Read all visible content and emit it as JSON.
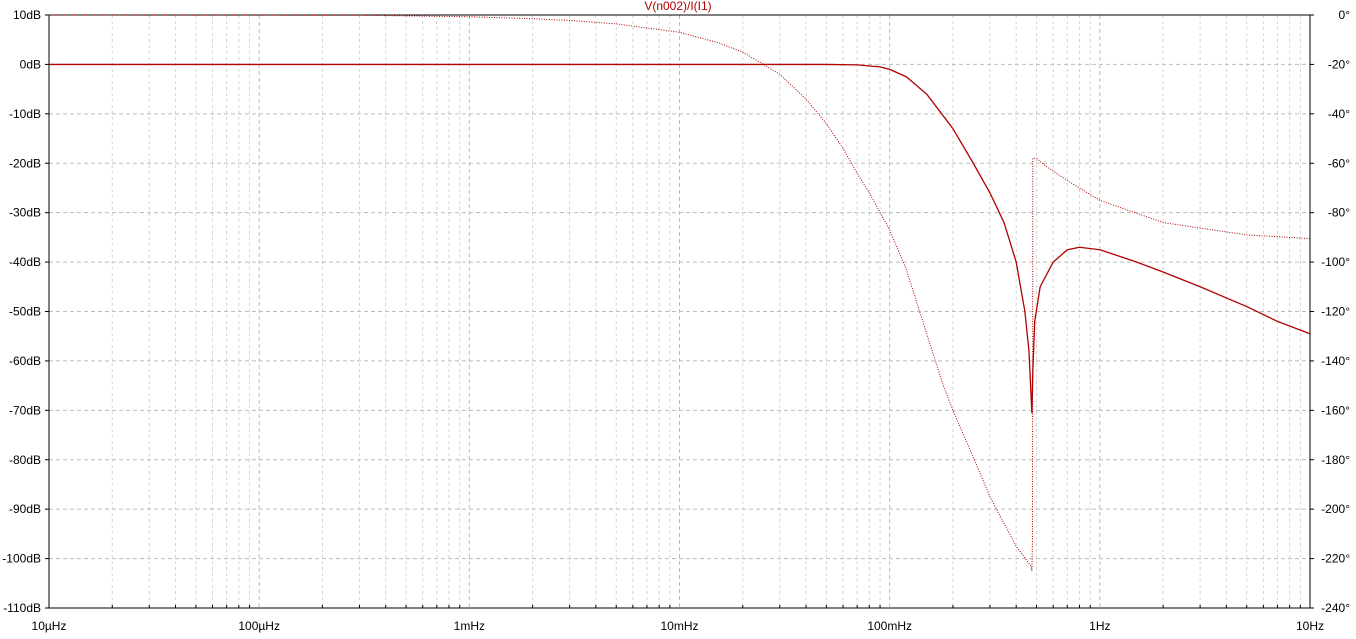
{
  "chart_data": {
    "type": "line",
    "title": "V(n002)/I(I1)",
    "xlabel": "",
    "ylabel": "",
    "x_scale": "log",
    "xlim": [
      1e-05,
      10
    ],
    "x_ticks": [
      {
        "value": 1e-05,
        "label": "10µHz"
      },
      {
        "value": 0.0001,
        "label": "100µHz"
      },
      {
        "value": 0.001,
        "label": "1mHz"
      },
      {
        "value": 0.01,
        "label": "10mHz"
      },
      {
        "value": 0.1,
        "label": "100mHz"
      },
      {
        "value": 1,
        "label": "1Hz"
      },
      {
        "value": 10,
        "label": "10Hz"
      }
    ],
    "ylim": [
      -110,
      10
    ],
    "y_ticks": [
      {
        "value": 10,
        "label": "10dB"
      },
      {
        "value": 0,
        "label": "0dB"
      },
      {
        "value": -10,
        "label": "-10dB"
      },
      {
        "value": -20,
        "label": "-20dB"
      },
      {
        "value": -30,
        "label": "-30dB"
      },
      {
        "value": -40,
        "label": "-40dB"
      },
      {
        "value": -50,
        "label": "-50dB"
      },
      {
        "value": -60,
        "label": "-60dB"
      },
      {
        "value": -70,
        "label": "-70dB"
      },
      {
        "value": -80,
        "label": "-80dB"
      },
      {
        "value": -90,
        "label": "-90dB"
      },
      {
        "value": -100,
        "label": "-100dB"
      },
      {
        "value": -110,
        "label": "-110dB"
      }
    ],
    "y2lim": [
      -240,
      0
    ],
    "y2_ticks": [
      {
        "value": 0,
        "label": "0°"
      },
      {
        "value": -20,
        "label": "-20°"
      },
      {
        "value": -40,
        "label": "-40°"
      },
      {
        "value": -60,
        "label": "-60°"
      },
      {
        "value": -80,
        "label": "-80°"
      },
      {
        "value": -100,
        "label": "-100°"
      },
      {
        "value": -120,
        "label": "-120°"
      },
      {
        "value": -140,
        "label": "-140°"
      },
      {
        "value": -160,
        "label": "-160°"
      },
      {
        "value": -180,
        "label": "-180°"
      },
      {
        "value": -200,
        "label": "-200°"
      },
      {
        "value": -220,
        "label": "-220°"
      },
      {
        "value": -240,
        "label": "-240°"
      }
    ],
    "grid": true,
    "series": [
      {
        "axis": "left",
        "style": "solid",
        "color": "#b00000",
        "points": [
          [
            1e-05,
            0
          ],
          [
            0.0001,
            0
          ],
          [
            0.001,
            0
          ],
          [
            0.01,
            0
          ],
          [
            0.05,
            0
          ],
          [
            0.07,
            -0.1
          ],
          [
            0.09,
            -0.5
          ],
          [
            0.1,
            -1
          ],
          [
            0.12,
            -2.5
          ],
          [
            0.15,
            -6
          ],
          [
            0.2,
            -13
          ],
          [
            0.25,
            -20
          ],
          [
            0.3,
            -26
          ],
          [
            0.35,
            -32
          ],
          [
            0.4,
            -40
          ],
          [
            0.44,
            -50
          ],
          [
            0.46,
            -58
          ],
          [
            0.475,
            -70.5
          ],
          [
            0.48,
            -62
          ],
          [
            0.49,
            -52
          ],
          [
            0.52,
            -45
          ],
          [
            0.6,
            -40
          ],
          [
            0.7,
            -37.5
          ],
          [
            0.8,
            -37
          ],
          [
            1,
            -37.5
          ],
          [
            1.5,
            -40
          ],
          [
            2,
            -42
          ],
          [
            3,
            -45
          ],
          [
            5,
            -49
          ],
          [
            7,
            -52
          ],
          [
            10,
            -54.5
          ]
        ]
      },
      {
        "axis": "right",
        "style": "dotted",
        "color": "#b00000",
        "points": [
          [
            1e-05,
            0
          ],
          [
            0.0003,
            -0.1
          ],
          [
            0.001,
            -0.7
          ],
          [
            0.002,
            -1.5
          ],
          [
            0.003,
            -2.2
          ],
          [
            0.005,
            -3.6
          ],
          [
            0.01,
            -7
          ],
          [
            0.015,
            -11
          ],
          [
            0.02,
            -15
          ],
          [
            0.03,
            -24
          ],
          [
            0.04,
            -34
          ],
          [
            0.05,
            -44
          ],
          [
            0.06,
            -54
          ],
          [
            0.07,
            -64
          ],
          [
            0.08,
            -72
          ],
          [
            0.1,
            -87
          ],
          [
            0.12,
            -103
          ],
          [
            0.15,
            -129
          ],
          [
            0.18,
            -150
          ],
          [
            0.2,
            -160
          ],
          [
            0.25,
            -179
          ],
          [
            0.3,
            -195
          ],
          [
            0.4,
            -215
          ],
          [
            0.47,
            -223
          ],
          [
            0.475,
            -225
          ],
          [
            0.478,
            -213
          ],
          [
            0.48,
            -58
          ],
          [
            0.5,
            -58
          ],
          [
            0.55,
            -61
          ],
          [
            0.7,
            -67
          ],
          [
            1,
            -75
          ],
          [
            2,
            -84
          ],
          [
            5,
            -89
          ],
          [
            10,
            -90.5
          ]
        ]
      }
    ]
  }
}
